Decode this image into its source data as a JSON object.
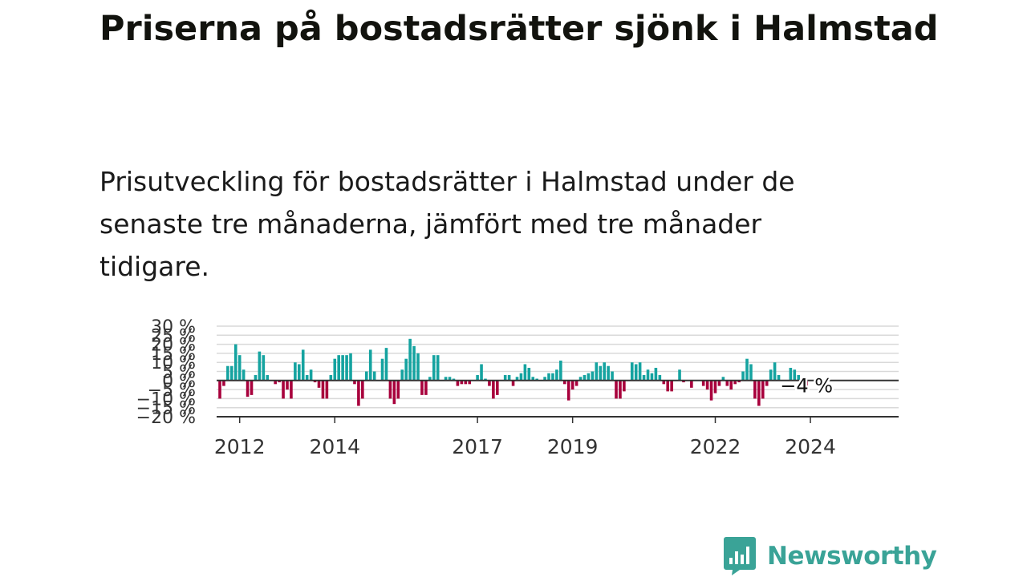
{
  "title": "Priserna på bostadsrätter sjönk i Halmstad",
  "subtitle": "Prisutveckling för bostadsrätter i Halmstad under de senaste tre månaderna, jämfört med tre månader tidigare.",
  "brand": {
    "name": "Newsworthy",
    "color": "#3aa397",
    "icon": "newsworthy-logo-icon"
  },
  "colors": {
    "positive": "#15a3a0",
    "negative": "#a8003c",
    "zero_line": "#333333",
    "grid": "#d9d9d9"
  },
  "chart_data": {
    "type": "bar",
    "ylim": [
      -20,
      30
    ],
    "y_ticks": [
      {
        "value": 30,
        "label": "30 %"
      },
      {
        "value": 25,
        "label": "25 %"
      },
      {
        "value": 20,
        "label": "20 %"
      },
      {
        "value": 15,
        "label": "15 %"
      },
      {
        "value": 10,
        "label": "10 %"
      },
      {
        "value": 5,
        "label": "5 %"
      },
      {
        "value": 0,
        "label": "0 %"
      },
      {
        "value": -5,
        "label": "−5 %"
      },
      {
        "value": -10,
        "label": "−10 %"
      },
      {
        "value": -15,
        "label": "−15 %"
      },
      {
        "value": -20,
        "label": "−20 %"
      }
    ],
    "x_start": "2011-08",
    "x_ticks": [
      {
        "month": "2012-01",
        "label": "2012"
      },
      {
        "month": "2014-01",
        "label": "2014"
      },
      {
        "month": "2017-01",
        "label": "2017"
      },
      {
        "month": "2019-01",
        "label": "2019"
      },
      {
        "month": "2022-01",
        "label": "2022"
      },
      {
        "month": "2024-01",
        "label": "2024"
      }
    ],
    "values": [
      -10,
      -3,
      8,
      8,
      20,
      14,
      6,
      -9,
      -8,
      3,
      16,
      14,
      3,
      0,
      -2,
      -1,
      -10,
      -5,
      -10,
      10,
      9,
      17,
      3,
      6,
      -1,
      -4,
      -10,
      -10,
      3,
      12,
      14,
      14,
      14,
      15,
      -2,
      -14,
      -10,
      5,
      17,
      5,
      0,
      12,
      18,
      -10,
      -13,
      -10,
      6,
      12,
      23,
      19,
      15,
      -8,
      -8,
      2,
      14,
      14,
      0,
      2,
      2,
      1,
      -3,
      -2,
      -2,
      -2,
      0,
      3,
      9,
      1,
      -3,
      -10,
      -8,
      0,
      3,
      3,
      -3,
      2,
      4,
      9,
      7,
      2,
      1,
      0,
      2,
      4,
      4,
      6,
      11,
      -2,
      -11,
      -5,
      -3,
      2,
      3,
      4,
      5,
      10,
      8,
      10,
      8,
      5,
      -10,
      -10,
      -6,
      0,
      10,
      9,
      10,
      3,
      6,
      4,
      7,
      3,
      -2,
      -6,
      -6,
      0,
      6,
      -1,
      0,
      -4,
      0,
      0,
      -3,
      -5,
      -11,
      -7,
      -3,
      2,
      -3,
      -5,
      -2,
      -1,
      5,
      12,
      9,
      -10,
      -14,
      -10,
      -3,
      6,
      10,
      3,
      0,
      0,
      7,
      6,
      3,
      -4,
      -4
    ],
    "last_value_label": "−4 %"
  }
}
